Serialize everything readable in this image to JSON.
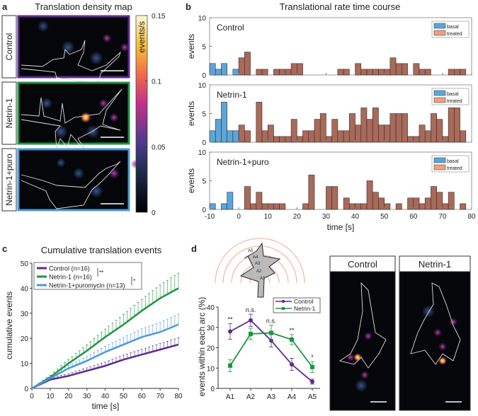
{
  "panel_labels": {
    "a": "a",
    "b": "b",
    "c": "c",
    "d": "d"
  },
  "panel_a": {
    "title": "Translation density map",
    "rows": [
      "Control",
      "Netrin-1",
      "Netrin-1+puro"
    ],
    "row_colors": [
      "#5b2c8f",
      "#1a9641",
      "#4a9ad9"
    ],
    "colorbar": {
      "label": "events/s",
      "ticks": [
        "0.15",
        "0.1",
        "0.05",
        "0"
      ],
      "range": [
        0,
        0.15
      ]
    }
  },
  "chart_data": [
    {
      "type": "bar",
      "title": "Translational rate time course",
      "xlabel": "time [s]",
      "ylabel": "events",
      "xlim": [
        -10,
        80
      ],
      "ylim": [
        0,
        10
      ],
      "xticks": [
        "-10",
        "0",
        "10",
        "20",
        "30",
        "40",
        "50",
        "60",
        "70",
        "80"
      ],
      "yticks": [
        "0",
        "5",
        "10"
      ],
      "bin_width": 2,
      "legend": {
        "placement": "top-right",
        "entries": [
          "basal",
          "treated"
        ]
      },
      "colors": {
        "basal": "#5aa6dc",
        "treated": "#a86a5a",
        "treated_legend": "#f0a07e"
      },
      "panels": [
        {
          "name": "Control",
          "basal": [
            2,
            1,
            2,
            0,
            1
          ],
          "treated": [
            3,
            4,
            0,
            1,
            1,
            0,
            1,
            1,
            1,
            2,
            2,
            0,
            0,
            0,
            0,
            0,
            0,
            1,
            1,
            0,
            2,
            1,
            1,
            1,
            1,
            1,
            3,
            2,
            2,
            0,
            2,
            1,
            1,
            0,
            0,
            0,
            1,
            1,
            1
          ]
        },
        {
          "name": "Netrin-1",
          "basal": [
            2,
            4,
            7,
            2,
            2
          ],
          "treated": [
            3,
            2,
            0,
            7,
            2,
            3,
            1,
            1,
            1,
            4,
            1,
            2,
            2,
            4,
            5,
            1,
            4,
            2,
            2,
            5,
            3,
            6,
            4,
            6,
            3,
            3,
            5,
            5,
            5,
            1,
            1,
            3,
            2,
            5,
            4,
            1,
            6,
            6,
            2
          ]
        },
        {
          "name": "Netrin-1+puro",
          "basal": [
            1,
            0,
            1,
            3,
            0
          ],
          "treated": [
            0,
            4,
            1,
            3,
            1,
            1,
            1,
            1,
            0,
            0,
            0,
            1,
            6,
            0,
            0,
            4,
            4,
            0,
            2,
            1,
            1,
            1,
            5,
            3,
            2,
            1,
            0,
            1,
            0,
            2,
            2,
            1,
            2,
            4,
            3,
            1,
            3,
            0,
            1
          ]
        }
      ]
    },
    {
      "type": "line",
      "title": "Cumulative translation events",
      "xlabel": "time [s]",
      "ylabel": "cumulative events",
      "xlim": [
        0,
        80
      ],
      "ylim": [
        0,
        50
      ],
      "xticks": [
        "0",
        "10",
        "20",
        "30",
        "40",
        "50",
        "60",
        "70",
        "80"
      ],
      "yticks": [
        "0",
        "10",
        "20",
        "30",
        "40",
        "50"
      ],
      "legend": {
        "placement": "top-left"
      },
      "significance": [
        "**",
        "*"
      ],
      "x": [
        0,
        10,
        20,
        30,
        40,
        50,
        60,
        70,
        80
      ],
      "series": [
        {
          "name": "Control (n=16)",
          "color": "#5b2c8f",
          "values": [
            0,
            3.5,
            5,
            7,
            9,
            11.5,
            13.5,
            15.5,
            17.5
          ],
          "err": [
            0,
            0.6,
            0.9,
            1.2,
            1.5,
            1.8,
            2.1,
            2.4,
            2.7
          ]
        },
        {
          "name": "Netrin-1 (n=16)",
          "color": "#1a9641",
          "values": [
            0,
            4.5,
            10,
            15,
            20.5,
            25.5,
            31,
            36,
            40
          ],
          "err": [
            0,
            0.8,
            1.6,
            2.4,
            3.2,
            4,
            4.6,
            5.3,
            6
          ]
        },
        {
          "name": "Netrin-1+puromycin (n=13)",
          "color": "#4a9ad9",
          "values": [
            0,
            4,
            8,
            11,
            14.5,
            17.5,
            20.5,
            22.5,
            25.5
          ],
          "err": [
            0,
            0.6,
            1.2,
            1.8,
            2.3,
            2.8,
            3.3,
            3.8,
            4.2
          ]
        }
      ]
    },
    {
      "type": "line",
      "xlabel": "",
      "ylabel": "events within each arc (%)",
      "categories": [
        "A1",
        "A2",
        "A3",
        "A4",
        "A5"
      ],
      "ylim": [
        0,
        40
      ],
      "yticks": [
        "0",
        "10",
        "20",
        "30",
        "40"
      ],
      "legend": {
        "placement": "top-right"
      },
      "significance": [
        "**",
        "n.s.",
        "n.s.",
        "**",
        "*"
      ],
      "series": [
        {
          "name": "Control",
          "color": "#5b2c8f",
          "marker": "circle",
          "values": [
            28,
            33.5,
            23.5,
            11.8,
            3.3
          ],
          "err": [
            3.8,
            3,
            3.2,
            3,
            1.2
          ]
        },
        {
          "name": "Netrin-1",
          "color": "#1a9641",
          "marker": "square",
          "values": [
            11.2,
            26.8,
            27.3,
            24,
            10.5
          ],
          "err": [
            3,
            2.8,
            3.8,
            2.5,
            2.7
          ]
        }
      ],
      "arc_labels": [
        "A5",
        "A4",
        "A3",
        "A2",
        "A1"
      ]
    }
  ],
  "panel_d_images": {
    "titles": [
      "Control",
      "Netrin-1"
    ]
  }
}
